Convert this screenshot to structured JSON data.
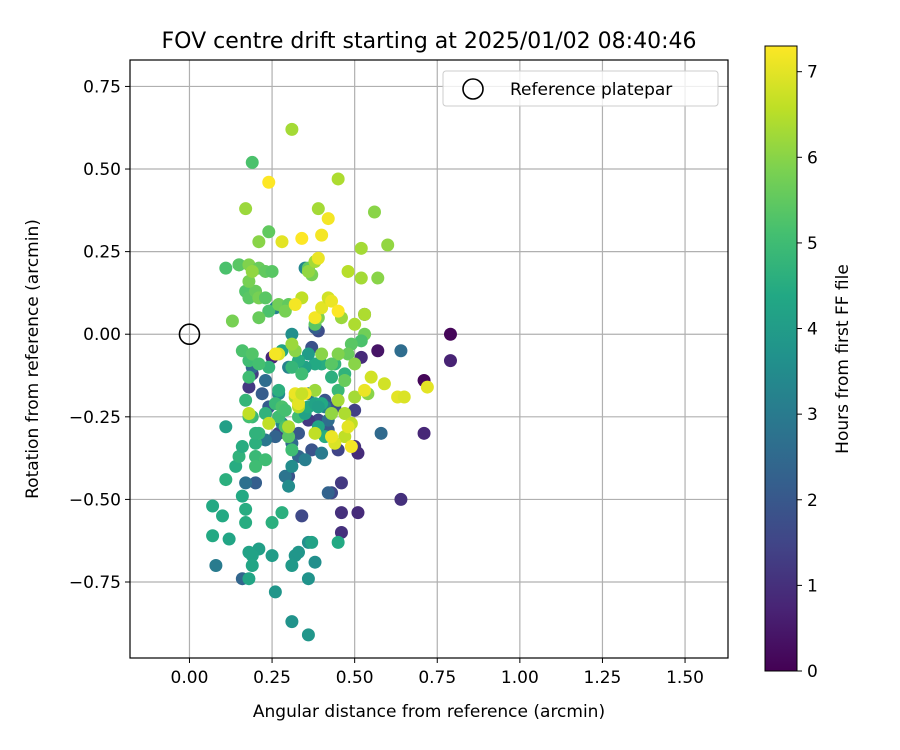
{
  "chart_data": {
    "type": "scatter",
    "title": "FOV centre drift starting at 2025/01/02 08:40:46",
    "xlabel": "Angular distance from reference (arcmin)",
    "ylabel": "Rotation from reference (arcmin)",
    "xlim": [
      -0.18,
      1.63
    ],
    "ylim": [
      -0.98,
      0.83
    ],
    "xticks": [
      0.0,
      0.25,
      0.5,
      0.75,
      1.0,
      1.25,
      1.5
    ],
    "xtick_labels": [
      "0.00",
      "0.25",
      "0.50",
      "0.75",
      "1.00",
      "1.25",
      "1.50"
    ],
    "yticks": [
      -0.75,
      -0.5,
      -0.25,
      0.0,
      0.25,
      0.5,
      0.75
    ],
    "ytick_labels": [
      "−0.75",
      "−0.50",
      "−0.25",
      "0.00",
      "0.25",
      "0.50",
      "0.75"
    ],
    "grid": true,
    "legend": {
      "placement": "top-right",
      "entries": [
        {
          "label": "Reference platepar",
          "marker": "open-circle"
        }
      ]
    },
    "reference_point": {
      "x": 0.0,
      "y": 0.0
    },
    "colorbar": {
      "label": "Hours from first FF file",
      "colormap": "viridis",
      "range": [
        0,
        7.3
      ],
      "ticks": [
        0,
        1,
        2,
        3,
        4,
        5,
        6,
        7
      ],
      "tick_labels": [
        "0",
        "1",
        "2",
        "3",
        "4",
        "5",
        "6",
        "7"
      ]
    },
    "series": [
      {
        "marker": "filled-circle",
        "points": [
          [
            0.79,
            0.0,
            0.1
          ],
          [
            0.79,
            -0.08,
            0.7
          ],
          [
            0.71,
            -0.14,
            0.1
          ],
          [
            0.71,
            -0.3,
            0.8
          ],
          [
            0.64,
            -0.5,
            1.0
          ],
          [
            0.58,
            -0.3,
            2.5
          ],
          [
            0.64,
            -0.05,
            2.6
          ],
          [
            0.57,
            -0.05,
            0.4
          ],
          [
            0.52,
            -0.07,
            0.9
          ],
          [
            0.53,
            0.06,
            1.8
          ],
          [
            0.5,
            -0.23,
            1.4
          ],
          [
            0.5,
            -0.34,
            1.0
          ],
          [
            0.51,
            -0.36,
            0.9
          ],
          [
            0.51,
            -0.54,
            0.9
          ],
          [
            0.46,
            -0.54,
            1.0
          ],
          [
            0.46,
            -0.6,
            1.0
          ],
          [
            0.46,
            -0.45,
            1.2
          ],
          [
            0.43,
            -0.48,
            1.6
          ],
          [
            0.42,
            -0.48,
            2.3
          ],
          [
            0.45,
            -0.35,
            1.5
          ],
          [
            0.44,
            -0.22,
            1.8
          ],
          [
            0.42,
            -0.29,
            2.0
          ],
          [
            0.41,
            -0.2,
            1.9
          ],
          [
            0.39,
            -0.26,
            1.5
          ],
          [
            0.37,
            -0.35,
            1.9
          ],
          [
            0.35,
            -0.1,
            2.1
          ],
          [
            0.37,
            -0.04,
            1.8
          ],
          [
            0.39,
            0.01,
            1.7
          ],
          [
            0.38,
            0.02,
            2.2
          ],
          [
            0.36,
            -0.26,
            1.2
          ],
          [
            0.33,
            -0.3,
            2.0
          ],
          [
            0.31,
            -0.33,
            2.5
          ],
          [
            0.34,
            -0.55,
            1.6
          ],
          [
            0.3,
            -0.43,
            1.9
          ],
          [
            0.29,
            -0.43,
            2.8
          ],
          [
            0.27,
            -0.3,
            1.4
          ],
          [
            0.25,
            -0.07,
            0.8
          ],
          [
            0.26,
            -0.31,
            2.3
          ],
          [
            0.24,
            -0.22,
            2.1
          ],
          [
            0.22,
            -0.18,
            2.1
          ],
          [
            0.23,
            -0.14,
            2.6
          ],
          [
            0.19,
            -0.12,
            1.3
          ],
          [
            0.18,
            -0.16,
            1.2
          ],
          [
            0.19,
            -0.1,
            2.5
          ],
          [
            0.2,
            -0.45,
            2.2
          ],
          [
            0.17,
            -0.45,
            2.7
          ],
          [
            0.16,
            -0.74,
            2.4
          ],
          [
            0.08,
            -0.7,
            3.0
          ],
          [
            0.33,
            -0.37,
            2.4
          ],
          [
            0.4,
            -0.36,
            3.0
          ],
          [
            0.41,
            -0.22,
            3.1
          ],
          [
            0.42,
            -0.26,
            2.6
          ],
          [
            0.36,
            -0.18,
            2.9
          ],
          [
            0.28,
            -0.27,
            3.3
          ],
          [
            0.27,
            -0.18,
            3.4
          ],
          [
            0.23,
            -0.32,
            2.9
          ],
          [
            0.3,
            -0.1,
            3.2
          ],
          [
            0.26,
            0.08,
            3.2
          ],
          [
            0.35,
            -0.23,
            2.7
          ],
          [
            0.35,
            0.2,
            3.4
          ],
          [
            0.31,
            0.0,
            3.6
          ],
          [
            0.35,
            -0.38,
            3.1
          ],
          [
            0.3,
            -0.46,
            3.5
          ],
          [
            0.31,
            -0.4,
            3.5
          ],
          [
            0.36,
            -0.63,
            3.6
          ],
          [
            0.38,
            -0.69,
            3.6
          ],
          [
            0.36,
            -0.74,
            3.7
          ],
          [
            0.31,
            -0.87,
            3.7
          ],
          [
            0.36,
            -0.91,
            3.8
          ],
          [
            0.26,
            -0.78,
            3.8
          ],
          [
            0.32,
            -0.67,
            3.8
          ],
          [
            0.33,
            -0.66,
            3.8
          ],
          [
            0.31,
            -0.7,
            3.9
          ],
          [
            0.25,
            -0.67,
            4.0
          ],
          [
            0.21,
            -0.65,
            4.1
          ],
          [
            0.19,
            -0.67,
            4.2
          ],
          [
            0.19,
            -0.7,
            4.3
          ],
          [
            0.18,
            -0.74,
            4.3
          ],
          [
            0.18,
            -0.66,
            4.2
          ],
          [
            0.12,
            -0.62,
            4.3
          ],
          [
            0.07,
            -0.61,
            4.4
          ],
          [
            0.07,
            -0.52,
            4.4
          ],
          [
            0.1,
            -0.55,
            4.4
          ],
          [
            0.17,
            -0.57,
            4.5
          ],
          [
            0.17,
            -0.53,
            4.5
          ],
          [
            0.16,
            -0.49,
            4.4
          ],
          [
            0.25,
            -0.57,
            4.6
          ],
          [
            0.28,
            -0.54,
            4.6
          ],
          [
            0.45,
            -0.63,
            4.4
          ],
          [
            0.37,
            -0.63,
            4.2
          ],
          [
            0.11,
            -0.44,
            4.6
          ],
          [
            0.14,
            -0.4,
            4.5
          ],
          [
            0.15,
            -0.37,
            4.7
          ],
          [
            0.16,
            -0.34,
            4.5
          ],
          [
            0.2,
            -0.33,
            4.6
          ],
          [
            0.21,
            -0.3,
            4.8
          ],
          [
            0.2,
            -0.3,
            4.7
          ],
          [
            0.2,
            -0.37,
            4.9
          ],
          [
            0.2,
            -0.4,
            5.0
          ],
          [
            0.23,
            -0.38,
            5.0
          ],
          [
            0.11,
            -0.28,
            4.1
          ],
          [
            0.19,
            -0.25,
            4.9
          ],
          [
            0.18,
            -0.25,
            5.1
          ],
          [
            0.17,
            -0.2,
            4.8
          ],
          [
            0.18,
            -0.13,
            5.0
          ],
          [
            0.23,
            -0.24,
            4.7
          ],
          [
            0.26,
            -0.21,
            4.9
          ],
          [
            0.27,
            -0.25,
            5.0
          ],
          [
            0.27,
            -0.17,
            4.6
          ],
          [
            0.28,
            -0.22,
            5.2
          ],
          [
            0.29,
            -0.23,
            5.1
          ],
          [
            0.29,
            -0.28,
            5.2
          ],
          [
            0.3,
            -0.31,
            5.4
          ],
          [
            0.31,
            -0.35,
            5.0
          ],
          [
            0.33,
            -0.25,
            5.0
          ],
          [
            0.35,
            -0.24,
            4.2
          ],
          [
            0.36,
            -0.22,
            4.4
          ],
          [
            0.38,
            -0.21,
            4.2
          ],
          [
            0.4,
            -0.21,
            4.4
          ],
          [
            0.39,
            -0.22,
            4.1
          ],
          [
            0.41,
            -0.31,
            4.5
          ],
          [
            0.39,
            -0.28,
            4.3
          ],
          [
            0.43,
            -0.13,
            4.6
          ],
          [
            0.47,
            -0.12,
            4.7
          ],
          [
            0.44,
            -0.09,
            4.8
          ],
          [
            0.45,
            -0.17,
            4.9
          ],
          [
            0.4,
            -0.09,
            4.5
          ],
          [
            0.38,
            -0.09,
            4.4
          ],
          [
            0.36,
            -0.06,
            4.0
          ],
          [
            0.35,
            -0.1,
            4.2
          ],
          [
            0.33,
            -0.08,
            4.5
          ],
          [
            0.31,
            -0.1,
            4.8
          ],
          [
            0.28,
            -0.05,
            4.3
          ],
          [
            0.24,
            -0.1,
            4.8
          ],
          [
            0.18,
            -0.08,
            5.0
          ],
          [
            0.16,
            -0.05,
            5.2
          ],
          [
            0.19,
            -0.06,
            5.3
          ],
          [
            0.21,
            -0.09,
            5.1
          ],
          [
            0.24,
            0.07,
            5.2
          ],
          [
            0.21,
            0.05,
            5.6
          ],
          [
            0.13,
            0.04,
            5.8
          ],
          [
            0.17,
            0.13,
            5.3
          ],
          [
            0.18,
            0.11,
            5.4
          ],
          [
            0.2,
            0.13,
            5.6
          ],
          [
            0.21,
            0.11,
            5.8
          ],
          [
            0.23,
            0.11,
            5.4
          ],
          [
            0.27,
            0.09,
            5.7
          ],
          [
            0.3,
            0.09,
            5.5
          ],
          [
            0.29,
            0.07,
            5.8
          ],
          [
            0.18,
            0.16,
            5.8
          ],
          [
            0.15,
            0.21,
            5.1
          ],
          [
            0.11,
            0.2,
            5.2
          ],
          [
            0.15,
            0.21,
            5.4
          ],
          [
            0.18,
            0.21,
            5.9
          ],
          [
            0.21,
            0.2,
            5.6
          ],
          [
            0.23,
            0.19,
            5.5
          ],
          [
            0.25,
            0.19,
            5.4
          ],
          [
            0.19,
            0.19,
            6.1
          ],
          [
            0.21,
            0.28,
            6.0
          ],
          [
            0.24,
            0.31,
            5.5
          ],
          [
            0.17,
            0.38,
            6.2
          ],
          [
            0.19,
            0.52,
            5.2
          ],
          [
            0.31,
            0.62,
            6.3
          ],
          [
            0.36,
            0.2,
            5.5
          ],
          [
            0.37,
            0.18,
            5.8
          ],
          [
            0.36,
            0.19,
            6.1
          ],
          [
            0.38,
            0.22,
            6.3
          ],
          [
            0.39,
            0.38,
            6.3
          ],
          [
            0.45,
            0.47,
            6.4
          ],
          [
            0.56,
            0.37,
            6.0
          ],
          [
            0.52,
            0.26,
            6.3
          ],
          [
            0.6,
            0.27,
            6.1
          ],
          [
            0.52,
            0.17,
            6.3
          ],
          [
            0.57,
            0.17,
            6.0
          ],
          [
            0.48,
            0.19,
            6.5
          ],
          [
            0.46,
            0.05,
            6.2
          ],
          [
            0.5,
            0.03,
            6.4
          ],
          [
            0.53,
            0.06,
            6.4
          ],
          [
            0.53,
            0.0,
            5.7
          ],
          [
            0.52,
            -0.02,
            5.2
          ],
          [
            0.49,
            -0.03,
            5.4
          ],
          [
            0.48,
            -0.06,
            5.6
          ],
          [
            0.5,
            -0.09,
            6.0
          ],
          [
            0.47,
            -0.14,
            5.6
          ],
          [
            0.45,
            -0.06,
            5.9
          ],
          [
            0.43,
            -0.09,
            5.4
          ],
          [
            0.4,
            -0.06,
            6.0
          ],
          [
            0.38,
            0.03,
            5.4
          ],
          [
            0.39,
            0.05,
            5.9
          ],
          [
            0.34,
            -0.12,
            5.0
          ],
          [
            0.32,
            -0.05,
            6.0
          ],
          [
            0.31,
            -0.03,
            6.2
          ],
          [
            0.32,
            -0.19,
            6.4
          ],
          [
            0.33,
            -0.22,
            6.5
          ],
          [
            0.38,
            -0.17,
            6.2
          ],
          [
            0.43,
            -0.24,
            6.1
          ],
          [
            0.45,
            -0.2,
            6.3
          ],
          [
            0.47,
            -0.24,
            6.4
          ],
          [
            0.49,
            -0.27,
            6.6
          ],
          [
            0.5,
            -0.19,
            6.3
          ],
          [
            0.47,
            -0.31,
            6.6
          ],
          [
            0.44,
            -0.33,
            6.9
          ],
          [
            0.43,
            -0.31,
            7.1
          ],
          [
            0.48,
            -0.28,
            7.0
          ],
          [
            0.49,
            -0.34,
            7.2
          ],
          [
            0.54,
            -0.18,
            6.0
          ],
          [
            0.55,
            -0.13,
            6.8
          ],
          [
            0.53,
            -0.17,
            7.1
          ],
          [
            0.59,
            -0.15,
            6.8
          ],
          [
            0.63,
            -0.19,
            7.0
          ],
          [
            0.65,
            -0.19,
            6.9
          ],
          [
            0.72,
            -0.16,
            7.0
          ],
          [
            0.3,
            -0.28,
            6.4
          ],
          [
            0.32,
            -0.18,
            7.1
          ],
          [
            0.35,
            -0.18,
            7.2
          ],
          [
            0.33,
            -0.21,
            7.0
          ],
          [
            0.34,
            -0.18,
            6.7
          ],
          [
            0.38,
            0.05,
            7.2
          ],
          [
            0.4,
            0.08,
            7.0
          ],
          [
            0.42,
            0.11,
            6.8
          ],
          [
            0.43,
            0.1,
            7.1
          ],
          [
            0.45,
            0.07,
            7.3
          ],
          [
            0.34,
            0.11,
            6.6
          ],
          [
            0.32,
            0.09,
            7.2
          ],
          [
            0.27,
            -0.06,
            6.9
          ],
          [
            0.26,
            -0.06,
            7.2
          ],
          [
            0.28,
            0.28,
            7.0
          ],
          [
            0.34,
            0.29,
            7.3
          ],
          [
            0.39,
            0.23,
            7.1
          ],
          [
            0.4,
            0.3,
            7.2
          ],
          [
            0.42,
            0.35,
            7.2
          ],
          [
            0.24,
            0.46,
            7.3
          ],
          [
            0.24,
            -0.27,
            6.6
          ],
          [
            0.18,
            -0.24,
            6.6
          ],
          [
            0.38,
            -0.3,
            6.6
          ]
        ]
      }
    ]
  }
}
